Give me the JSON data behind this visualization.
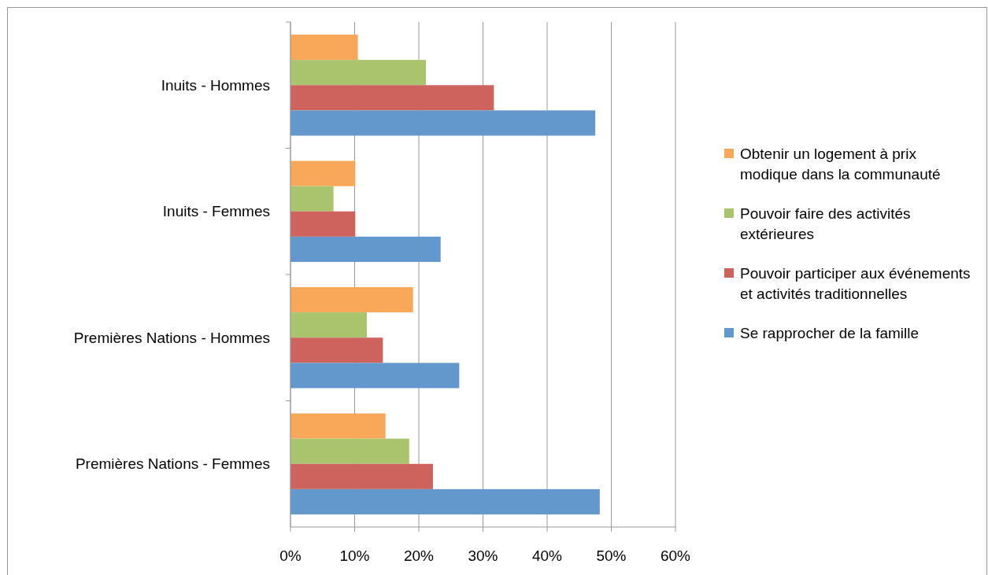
{
  "chart_data": {
    "type": "bar",
    "orientation": "horizontal",
    "categories": [
      "Inuits - Hommes",
      "Inuits - Femmes",
      "Premières Nations - Hommes",
      "Premières Nations - Femmes"
    ],
    "series": [
      {
        "name": "Obtenir un logement à prix modique dans la communauté",
        "color": "#f9a85a",
        "values": [
          10.5,
          10.1,
          19.1,
          14.8
        ]
      },
      {
        "name": "Pouvoir faire des activités extérieures",
        "color": "#a9c46c",
        "values": [
          21.1,
          6.7,
          11.9,
          18.5
        ]
      },
      {
        "name": "Pouvoir participer aux événements et activités traditionnelles",
        "color": "#cd635c",
        "values": [
          31.7,
          10.1,
          14.4,
          22.2
        ]
      },
      {
        "name": "Se rapprocher de la famille",
        "color": "#6298cc",
        "values": [
          47.5,
          23.4,
          26.3,
          48.2
        ]
      }
    ],
    "xlim": [
      0,
      60
    ],
    "xticks": [
      {
        "value": 0,
        "label": "0%"
      },
      {
        "value": 10,
        "label": "10%"
      },
      {
        "value": 20,
        "label": "20%"
      },
      {
        "value": 30,
        "label": "30%"
      },
      {
        "value": 40,
        "label": "40%"
      },
      {
        "value": 50,
        "label": "50%"
      },
      {
        "value": 60,
        "label": "60%"
      }
    ],
    "grid": "x",
    "legend": "right"
  }
}
